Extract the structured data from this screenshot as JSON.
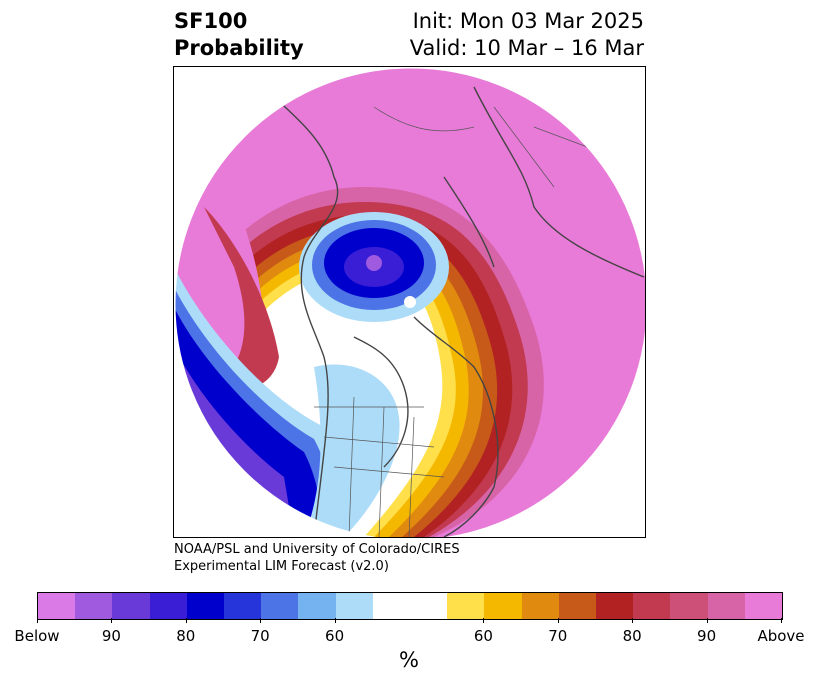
{
  "header": {
    "variable": "SF100",
    "subtitle": "Probability",
    "init": "Init: Mon 03 Mar 2025",
    "valid": "Valid: 10 Mar – 16 Mar"
  },
  "credit": {
    "line1": "NOAA/PSL and University of Colorado/CIRES",
    "line2": "Experimental LIM Forecast (v2.0)"
  },
  "colorbar": {
    "colors": [
      "#d97ae6",
      "#9f5ae0",
      "#6a3ad9",
      "#3a1ed6",
      "#0000cc",
      "#2535d9",
      "#4c74e6",
      "#75b2f0",
      "#addcf9",
      "#ffffff",
      "#ffffff",
      "#ffe04a",
      "#f5b800",
      "#e08a10",
      "#c75a18",
      "#b22222",
      "#c23a50",
      "#cc5078",
      "#d864a8",
      "#e87ad8"
    ],
    "labels": [
      "Below",
      "90",
      "80",
      "70",
      "60",
      "60",
      "70",
      "80",
      "90",
      "Above"
    ],
    "unit": "%"
  },
  "palette": {
    "below_strong": "#6a3ad9",
    "below_core": "#0000cc",
    "neutral": "#ffffff",
    "above_core": "#b22222",
    "above_strong": "#e87ad8",
    "coastline": "#444444"
  }
}
